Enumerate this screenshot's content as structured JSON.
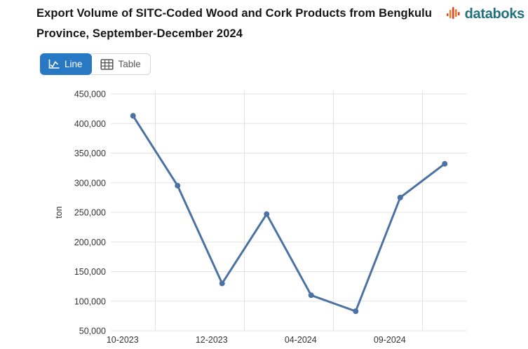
{
  "header": {
    "title": "Export Volume of SITC-Coded Wood and Cork Products from Bengkulu Province, September-December 2024",
    "brand": "databoks"
  },
  "toolbar": {
    "line_label": "Line",
    "table_label": "Table"
  },
  "colors": {
    "accent_blue": "#2878c4",
    "brand_text": "#20707e",
    "brand_orange": "#f47b20",
    "brand_red": "#e8432a",
    "grid": "#e3e3e3",
    "axis_text": "#333333",
    "line": "#4b72a3"
  },
  "chart_data": {
    "type": "line",
    "categories": [
      "10-2023",
      "",
      "12-2023",
      "",
      "04-2024",
      "",
      "09-2024",
      ""
    ],
    "values": [
      413000,
      295000,
      130000,
      247000,
      110000,
      83000,
      275000,
      332000
    ],
    "series_name": "Export volume",
    "xlabel": "",
    "ylabel": "ton",
    "ylim": [
      50000,
      450000
    ],
    "y_tick_step": 50000,
    "y_tick_labels": [
      "50,000",
      "100,000",
      "150,000",
      "200,000",
      "250,000",
      "300,000",
      "350,000",
      "400,000",
      "450,000"
    ],
    "x_tick_labels_visible": [
      "10-2023",
      "12-2023",
      "04-2024",
      "09-2024"
    ],
    "grid": true,
    "legend": "none",
    "marker": "circle"
  }
}
